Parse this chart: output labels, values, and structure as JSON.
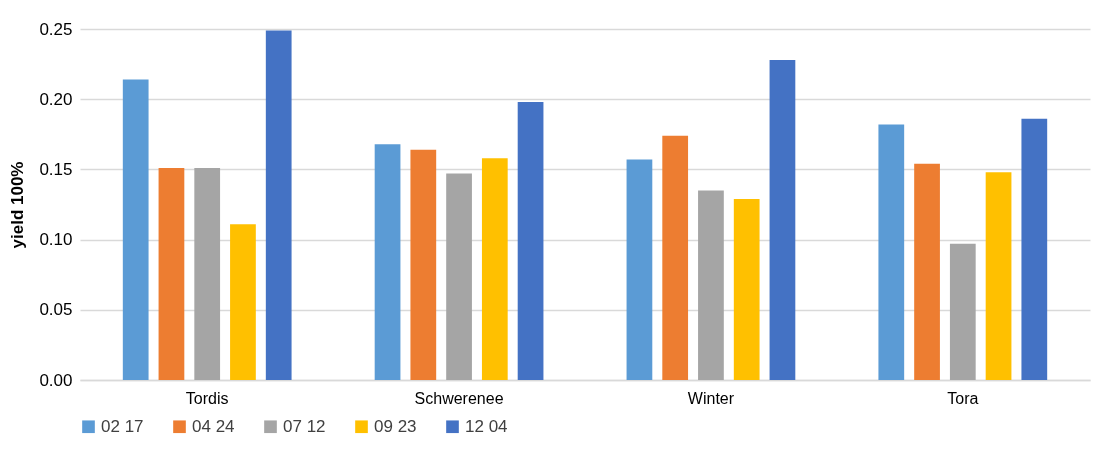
{
  "chart_data": {
    "type": "bar",
    "ylabel": "yield 100%",
    "categories": [
      "Tordis",
      "Schwerenee",
      "Winter",
      "Tora"
    ],
    "series": [
      {
        "name": "02  17",
        "color": "#5b9bd5",
        "values": [
          0.214,
          0.168,
          0.157,
          0.182
        ]
      },
      {
        "name": "04  24",
        "color": "#ed7d31",
        "values": [
          0.151,
          0.164,
          0.174,
          0.154
        ]
      },
      {
        "name": "07  12",
        "color": "#a5a5a5",
        "values": [
          0.151,
          0.147,
          0.135,
          0.097
        ]
      },
      {
        "name": "09  23",
        "color": "#ffc000",
        "values": [
          0.111,
          0.158,
          0.129,
          0.148
        ]
      },
      {
        "name": "12  04",
        "color": "#4472c4",
        "values": [
          0.249,
          0.198,
          0.228,
          0.186
        ]
      }
    ],
    "ylim": [
      0,
      0.25
    ],
    "yticks": [
      {
        "value": 0,
        "label": "0.00"
      },
      {
        "value": 0.05,
        "label": "0.05"
      },
      {
        "value": 0.1,
        "label": "0.10"
      },
      {
        "value": 0.15,
        "label": "0.15"
      },
      {
        "value": 0.2,
        "label": "0.20"
      },
      {
        "value": 0.25,
        "label": "0.25"
      }
    ],
    "grid": "y",
    "legend": "bottom"
  }
}
